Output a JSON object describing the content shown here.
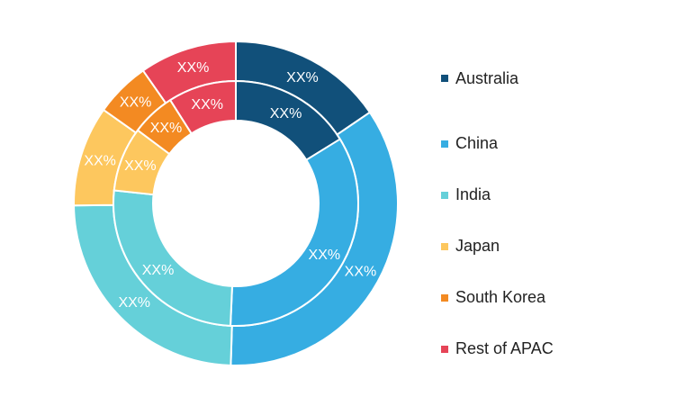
{
  "chart_data": {
    "type": "pie",
    "variant": "nested-donut",
    "categories": [
      "Australia",
      "China",
      "India",
      "Japan",
      "South Korea",
      "Rest of APAC"
    ],
    "colors": [
      "#11507a",
      "#36ade2",
      "#65d0d9",
      "#fdc75e",
      "#f38a22",
      "#e64457"
    ],
    "series": [
      {
        "ring": "outer",
        "values": [
          15.5,
          35.0,
          24.3,
          10.0,
          5.5,
          9.7
        ],
        "labels": [
          "XX%",
          "XX%",
          "XX%",
          "XX%",
          "XX%",
          "XX%"
        ]
      },
      {
        "ring": "inner",
        "values": [
          16.2,
          34.5,
          26.0,
          8.5,
          5.8,
          9.0
        ],
        "labels": [
          "XX%",
          "XX%",
          "XX%",
          "XX%",
          "XX%",
          "XX%"
        ]
      }
    ],
    "legend_position": "right"
  }
}
